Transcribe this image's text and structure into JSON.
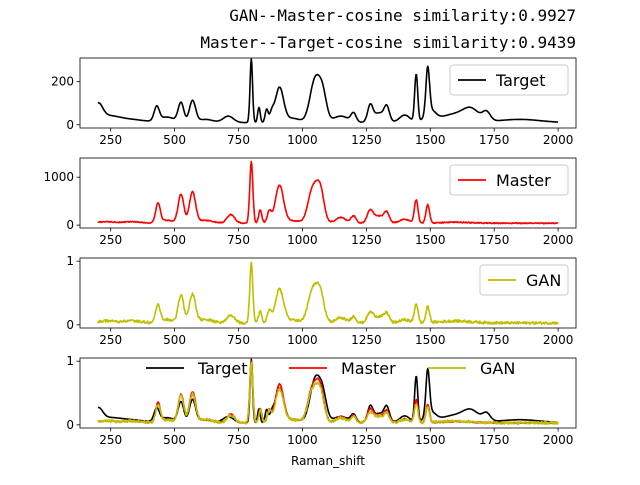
{
  "figure": {
    "title_lines": [
      "GAN--Master-cosine similarity:0.9927",
      "Master--Target-cosine similarity:0.9439"
    ],
    "xlabel": "Raman_shift"
  },
  "chart_data": [
    {
      "type": "line",
      "xlim": [
        130,
        2070
      ],
      "ylim": [
        -15,
        310
      ],
      "xticks": [
        250,
        500,
        750,
        1000,
        1250,
        1500,
        1750,
        2000
      ],
      "yticks": [
        0,
        200
      ],
      "legend": "top-right",
      "series": [
        {
          "name": "Target",
          "color": "#000000",
          "peaks": [
            [
              200,
              75,
              18
            ],
            [
              240,
              25,
              40
            ],
            [
              320,
              15,
              60
            ],
            [
              430,
              65,
              10
            ],
            [
              470,
              25,
              30
            ],
            [
              525,
              90,
              11
            ],
            [
              570,
              100,
              12
            ],
            [
              620,
              15,
              30
            ],
            [
              710,
              30,
              20
            ],
            [
              800,
              295,
              5
            ],
            [
              830,
              70,
              5
            ],
            [
              860,
              60,
              6
            ],
            [
              880,
              40,
              8
            ],
            [
              910,
              160,
              16
            ],
            [
              960,
              20,
              30
            ],
            [
              1050,
              200,
              20
            ],
            [
              1080,
              110,
              15
            ],
            [
              1150,
              30,
              30
            ],
            [
              1200,
              40,
              10
            ],
            [
              1265,
              70,
              10
            ],
            [
              1300,
              45,
              25
            ],
            [
              1330,
              60,
              10
            ],
            [
              1400,
              35,
              20
            ],
            [
              1445,
              220,
              6
            ],
            [
              1490,
              210,
              7
            ],
            [
              1500,
              50,
              20
            ],
            [
              1600,
              40,
              60
            ],
            [
              1660,
              45,
              30
            ],
            [
              1720,
              40,
              15
            ],
            [
              1850,
              15,
              80
            ]
          ],
          "baseline": 10,
          "noise": 0
        }
      ]
    },
    {
      "type": "line",
      "xlim": [
        130,
        2070
      ],
      "ylim": [
        -60,
        1400
      ],
      "xticks": [
        250,
        500,
        750,
        1000,
        1250,
        1500,
        1750,
        2000
      ],
      "yticks": [
        0,
        1000
      ],
      "legend": "top-right",
      "series": [
        {
          "name": "Master",
          "color": "#ff0000",
          "peaks": [
            [
              230,
              30,
              30
            ],
            [
              330,
              30,
              40
            ],
            [
              435,
              400,
              9
            ],
            [
              470,
              60,
              25
            ],
            [
              525,
              600,
              11
            ],
            [
              570,
              640,
              12
            ],
            [
              620,
              60,
              30
            ],
            [
              720,
              180,
              15
            ],
            [
              800,
              1290,
              6
            ],
            [
              835,
              280,
              6
            ],
            [
              870,
              240,
              8
            ],
            [
              910,
              780,
              16
            ],
            [
              960,
              50,
              30
            ],
            [
              1040,
              700,
              18
            ],
            [
              1070,
              650,
              15
            ],
            [
              1150,
              120,
              20
            ],
            [
              1200,
              150,
              10
            ],
            [
              1265,
              250,
              12
            ],
            [
              1300,
              150,
              20
            ],
            [
              1330,
              200,
              10
            ],
            [
              1400,
              80,
              20
            ],
            [
              1445,
              480,
              7
            ],
            [
              1490,
              380,
              7
            ],
            [
              1600,
              20,
              60
            ]
          ],
          "baseline": 40,
          "noise": 10
        }
      ]
    },
    {
      "type": "line",
      "xlim": [
        130,
        2070
      ],
      "ylim": [
        -0.05,
        1.05
      ],
      "xticks": [
        250,
        500,
        750,
        1000,
        1250,
        1500,
        1750,
        2000
      ],
      "yticks": [
        0,
        1
      ],
      "legend": "top-right",
      "series": [
        {
          "name": "GAN",
          "color": "#bfbf00",
          "peaks": [
            [
              230,
              0.03,
              30
            ],
            [
              330,
              0.03,
              40
            ],
            [
              435,
              0.27,
              9
            ],
            [
              470,
              0.05,
              25
            ],
            [
              525,
              0.43,
              11
            ],
            [
              570,
              0.44,
              12
            ],
            [
              620,
              0.05,
              30
            ],
            [
              720,
              0.12,
              15
            ],
            [
              800,
              0.95,
              6
            ],
            [
              835,
              0.2,
              6
            ],
            [
              870,
              0.18,
              8
            ],
            [
              910,
              0.52,
              16
            ],
            [
              960,
              0.05,
              30
            ],
            [
              1040,
              0.5,
              18
            ],
            [
              1070,
              0.45,
              15
            ],
            [
              1150,
              0.08,
              20
            ],
            [
              1200,
              0.1,
              10
            ],
            [
              1265,
              0.15,
              12
            ],
            [
              1300,
              0.1,
              20
            ],
            [
              1330,
              0.13,
              10
            ],
            [
              1400,
              0.05,
              20
            ],
            [
              1445,
              0.3,
              7
            ],
            [
              1490,
              0.25,
              7
            ],
            [
              1600,
              0.03,
              60
            ]
          ],
          "baseline": 0.03,
          "noise": 0.02
        }
      ]
    },
    {
      "type": "line",
      "xlim": [
        130,
        2070
      ],
      "ylim": [
        -0.05,
        1.05
      ],
      "xticks": [
        250,
        500,
        750,
        1000,
        1250,
        1500,
        1750,
        2000
      ],
      "yticks": [
        0,
        1
      ],
      "legend": "top-center",
      "series": [
        {
          "name": "Target",
          "color": "#000000",
          "peaks": [
            [
              200,
              0.2,
              18
            ],
            [
              240,
              0.06,
              40
            ],
            [
              320,
              0.05,
              60
            ],
            [
              430,
              0.2,
              10
            ],
            [
              470,
              0.08,
              30
            ],
            [
              525,
              0.32,
              11
            ],
            [
              570,
              0.36,
              12
            ],
            [
              620,
              0.05,
              30
            ],
            [
              710,
              0.1,
              20
            ],
            [
              800,
              1.0,
              5
            ],
            [
              830,
              0.22,
              5
            ],
            [
              860,
              0.2,
              6
            ],
            [
              880,
              0.13,
              8
            ],
            [
              910,
              0.54,
              16
            ],
            [
              960,
              0.06,
              30
            ],
            [
              1050,
              0.68,
              20
            ],
            [
              1080,
              0.36,
              15
            ],
            [
              1150,
              0.1,
              30
            ],
            [
              1200,
              0.12,
              10
            ],
            [
              1265,
              0.22,
              10
            ],
            [
              1300,
              0.15,
              25
            ],
            [
              1330,
              0.2,
              10
            ],
            [
              1400,
              0.11,
              20
            ],
            [
              1445,
              0.72,
              6
            ],
            [
              1490,
              0.7,
              7
            ],
            [
              1500,
              0.15,
              20
            ],
            [
              1600,
              0.12,
              60
            ],
            [
              1660,
              0.14,
              30
            ],
            [
              1720,
              0.12,
              15
            ],
            [
              1850,
              0.05,
              80
            ]
          ],
          "baseline": 0.03,
          "noise": 0
        },
        {
          "name": "Master",
          "color": "#ff0000",
          "peaks": [
            [
              230,
              0.03,
              30
            ],
            [
              330,
              0.03,
              40
            ],
            [
              435,
              0.3,
              9
            ],
            [
              470,
              0.05,
              25
            ],
            [
              525,
              0.45,
              11
            ],
            [
              570,
              0.48,
              12
            ],
            [
              620,
              0.05,
              30
            ],
            [
              720,
              0.14,
              15
            ],
            [
              800,
              0.98,
              6
            ],
            [
              835,
              0.22,
              6
            ],
            [
              870,
              0.19,
              8
            ],
            [
              910,
              0.6,
              16
            ],
            [
              960,
              0.05,
              30
            ],
            [
              1040,
              0.55,
              18
            ],
            [
              1070,
              0.5,
              15
            ],
            [
              1150,
              0.1,
              20
            ],
            [
              1200,
              0.12,
              10
            ],
            [
              1265,
              0.2,
              12
            ],
            [
              1300,
              0.12,
              20
            ],
            [
              1330,
              0.16,
              10
            ],
            [
              1400,
              0.06,
              20
            ],
            [
              1445,
              0.36,
              7
            ],
            [
              1490,
              0.29,
              7
            ],
            [
              1600,
              0.02,
              60
            ]
          ],
          "baseline": 0.03,
          "noise": 0.01
        },
        {
          "name": "GAN",
          "color": "#bfbf00",
          "peaks": [
            [
              230,
              0.03,
              30
            ],
            [
              330,
              0.03,
              40
            ],
            [
              435,
              0.27,
              9
            ],
            [
              470,
              0.05,
              25
            ],
            [
              525,
              0.43,
              11
            ],
            [
              570,
              0.44,
              12
            ],
            [
              620,
              0.05,
              30
            ],
            [
              720,
              0.12,
              15
            ],
            [
              800,
              0.95,
              6
            ],
            [
              835,
              0.2,
              6
            ],
            [
              870,
              0.18,
              8
            ],
            [
              910,
              0.52,
              16
            ],
            [
              960,
              0.05,
              30
            ],
            [
              1040,
              0.5,
              18
            ],
            [
              1070,
              0.45,
              15
            ],
            [
              1150,
              0.08,
              20
            ],
            [
              1200,
              0.1,
              10
            ],
            [
              1265,
              0.15,
              12
            ],
            [
              1300,
              0.1,
              20
            ],
            [
              1330,
              0.13,
              10
            ],
            [
              1400,
              0.05,
              20
            ],
            [
              1445,
              0.3,
              7
            ],
            [
              1490,
              0.25,
              7
            ],
            [
              1600,
              0.03,
              60
            ]
          ],
          "baseline": 0.03,
          "noise": 0.02
        }
      ]
    }
  ]
}
